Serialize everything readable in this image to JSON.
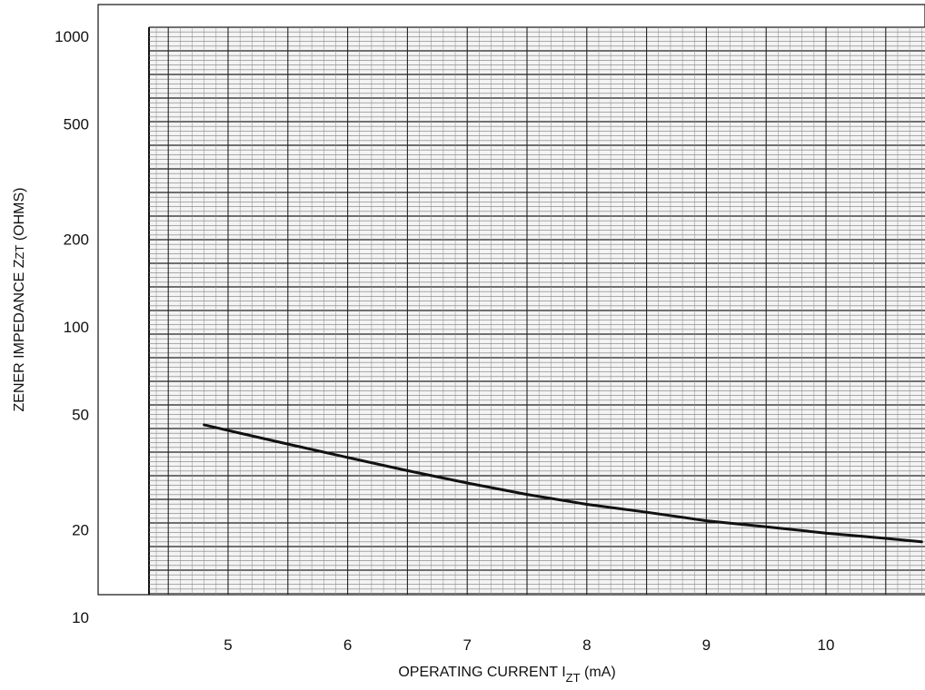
{
  "chart_data": {
    "type": "line",
    "title": "",
    "xlabel": {
      "main": "OPERATING CURRENT I",
      "sub": "ZT",
      "unit": " (mA)"
    },
    "ylabel": {
      "main": "ZENER IMPEDANCE Z",
      "sub": "ZT",
      "unit": " (OHMS)"
    },
    "x_ticks": [
      5,
      6,
      7,
      8,
      9,
      10
    ],
    "y_ticks": [
      10,
      20,
      50,
      100,
      200,
      500,
      1000
    ],
    "xlim": [
      4.4,
      10.8
    ],
    "ylim": [
      10,
      1000
    ],
    "y_scale": "log",
    "grid": true,
    "series": [
      {
        "x": [
          4.8,
          5.0,
          5.5,
          6.0,
          6.5,
          7.0,
          7.5,
          8.0,
          8.5,
          9.0,
          9.5,
          10.0,
          10.5,
          10.8
        ],
        "y": [
          46,
          44,
          39.5,
          35.5,
          32,
          29,
          26.5,
          24.5,
          23,
          21.5,
          20.5,
          19.5,
          18.7,
          18.2
        ]
      }
    ]
  }
}
